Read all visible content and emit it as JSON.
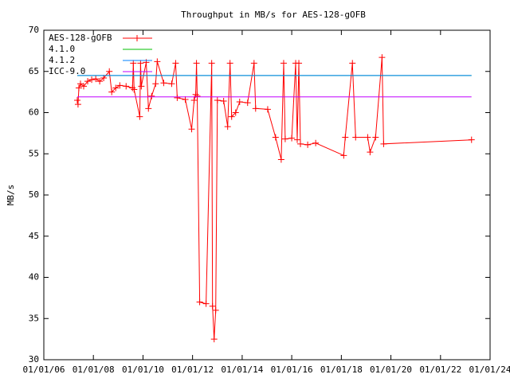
{
  "chart_data": {
    "type": "line",
    "title": "Throughput in MB/s for AES-128-gOFB",
    "ylabel": "MB/s",
    "xlim": [
      "2006-01-01",
      "2024-01-01"
    ],
    "xticks": [
      {
        "value": "2006-01-01",
        "label": "01/01/06"
      },
      {
        "value": "2008-01-01",
        "label": "01/01/08"
      },
      {
        "value": "2010-01-01",
        "label": "01/01/10"
      },
      {
        "value": "2012-01-01",
        "label": "01/01/12"
      },
      {
        "value": "2014-01-01",
        "label": "01/01/14"
      },
      {
        "value": "2016-01-01",
        "label": "01/01/16"
      },
      {
        "value": "2018-01-01",
        "label": "01/01/18"
      },
      {
        "value": "2020-01-01",
        "label": "01/01/20"
      },
      {
        "value": "2022-01-01",
        "label": "01/01/22"
      },
      {
        "value": "2024-01-01",
        "label": "01/01/24"
      }
    ],
    "ylim": [
      30,
      70
    ],
    "yticks": [
      30,
      35,
      40,
      45,
      50,
      55,
      60,
      65,
      70
    ],
    "legend": "top-left",
    "series": [
      {
        "name": "AES-128-gOFB",
        "color": "#ff0000",
        "marker": "plus",
        "x": [
          "2007-05-09",
          "2007-05-20",
          "2007-06-01",
          "2007-06-25",
          "2007-08-11",
          "2007-10-09",
          "2007-12-07",
          "2008-02-05",
          "2008-04-03",
          "2008-06-01",
          "2008-08-23",
          "2008-09-27",
          "2008-11-25",
          "2009-01-24",
          "2009-04-27",
          "2009-07-30",
          "2009-08-11",
          "2009-08-23",
          "2009-11-14",
          "2009-11-26",
          "2009-12-07",
          "2010-02-17",
          "2010-03-22",
          "2010-05-08",
          "2010-07-06",
          "2010-07-30",
          "2010-11-02",
          "2011-02-28",
          "2011-04-27",
          "2011-05-20",
          "2011-09-16",
          "2011-12-19",
          "2012-01-24",
          "2012-02-17",
          "2012-02-28",
          "2012-03-10",
          "2012-04-15",
          "2012-07-18",
          "2012-10-09",
          "2012-10-21",
          "2012-11-14",
          "2012-12-07",
          "2013-01-01",
          "2013-04-03",
          "2013-06-01",
          "2013-07-06",
          "2013-07-30",
          "2013-09-27",
          "2013-11-25",
          "2014-03-22",
          "2014-06-25",
          "2014-07-18",
          "2015-01-12",
          "2015-05-08",
          "2015-07-30",
          "2015-09-04",
          "2015-09-27",
          "2016-01-01",
          "2016-02-28",
          "2016-03-22",
          "2016-04-15",
          "2016-05-08",
          "2016-08-23",
          "2016-12-19",
          "2018-02-05",
          "2018-02-28",
          "2018-06-13",
          "2018-07-30",
          "2019-01-24",
          "2019-02-28",
          "2019-05-20",
          "2019-08-23",
          "2019-09-16",
          "2023-04-03"
        ],
        "values": [
          61.5,
          61.0,
          63.0,
          63.5,
          63.2,
          63.8,
          64.0,
          64.1,
          63.8,
          64.2,
          65.0,
          62.5,
          63.0,
          63.3,
          63.2,
          63.0,
          66.0,
          62.8,
          59.5,
          66.0,
          63.2,
          66.1,
          60.5,
          62.0,
          63.5,
          66.2,
          63.6,
          63.5,
          66.0,
          61.8,
          61.6,
          58.0,
          61.5,
          62.2,
          66.0,
          62.0,
          37.0,
          36.8,
          66.0,
          36.5,
          32.5,
          36.0,
          61.5,
          61.4,
          58.3,
          66.0,
          59.5,
          60.0,
          61.3,
          61.2,
          66.0,
          60.5,
          60.4,
          57.0,
          54.3,
          66.0,
          56.8,
          56.9,
          66.0,
          56.7,
          66.0,
          56.2,
          56.1,
          56.3,
          54.8,
          57.0,
          66.0,
          57.0,
          57.0,
          55.2,
          57.0,
          66.7,
          56.2,
          56.7
        ]
      },
      {
        "name": "4.1.0",
        "color": "#00c000",
        "x": [
          "2007-05-09",
          "2023-04-03"
        ],
        "values": [
          64.5,
          64.5
        ]
      },
      {
        "name": "4.1.2",
        "color": "#0080ff",
        "x": [
          "2007-05-09",
          "2023-04-03"
        ],
        "values": [
          64.5,
          64.5
        ]
      },
      {
        "name": "ICC-9.0",
        "color": "#c000ff",
        "x": [
          "2007-05-09",
          "2023-04-03"
        ],
        "values": [
          61.9,
          61.9
        ]
      }
    ]
  }
}
